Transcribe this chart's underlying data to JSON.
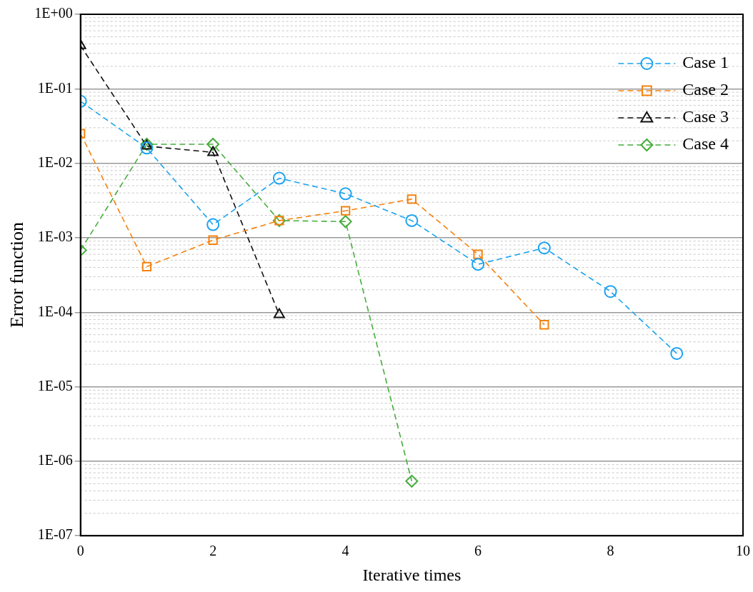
{
  "chart_data": {
    "type": "line",
    "xlabel": "Iterative times",
    "ylabel": "Error function",
    "log": "y",
    "grid": "y",
    "legend": "top right",
    "line_style": "dashed",
    "xlim": [
      0,
      10
    ],
    "xticks": [
      0,
      2,
      4,
      6,
      8,
      10
    ],
    "ylim": [
      1e-07,
      1
    ],
    "yticks": [
      {
        "value": 1e-07,
        "label": "1E-07"
      },
      {
        "value": 1e-06,
        "label": "1E-06"
      },
      {
        "value": 1e-05,
        "label": "1E-05"
      },
      {
        "value": 0.0001,
        "label": "1E-04"
      },
      {
        "value": 0.001,
        "label": "1E-03"
      },
      {
        "value": 0.01,
        "label": "1E-02"
      },
      {
        "value": 0.1,
        "label": "1E-01"
      },
      {
        "value": 1,
        "label": "1E+00"
      }
    ],
    "series": [
      {
        "name": "Case 1",
        "color": "#1aa3f0",
        "marker": "circle",
        "x": [
          0,
          1,
          2,
          3,
          4,
          5,
          6,
          7,
          8,
          9
        ],
        "values": [
          0.068,
          0.016,
          0.0015,
          0.0063,
          0.0039,
          0.0017,
          0.00044,
          0.00073,
          0.00019,
          2.8e-05
        ]
      },
      {
        "name": "Case 2",
        "color": "#f5820f",
        "marker": "square",
        "x": [
          0,
          1,
          2,
          3,
          4,
          5,
          6,
          7
        ],
        "values": [
          0.025,
          0.00041,
          0.00093,
          0.0017,
          0.0023,
          0.0033,
          0.0006,
          6.8e-05
        ]
      },
      {
        "name": "Case 3",
        "color": "#111111",
        "marker": "triangle",
        "x": [
          0,
          1,
          2,
          3
        ],
        "values": [
          0.38,
          0.017,
          0.014,
          9.3e-05
        ]
      },
      {
        "name": "Case 4",
        "color": "#45ad3c",
        "marker": "diamond",
        "x": [
          0,
          1,
          2,
          3,
          4,
          5
        ],
        "values": [
          0.00068,
          0.018,
          0.018,
          0.0017,
          0.00165,
          5.4e-07
        ]
      }
    ]
  }
}
